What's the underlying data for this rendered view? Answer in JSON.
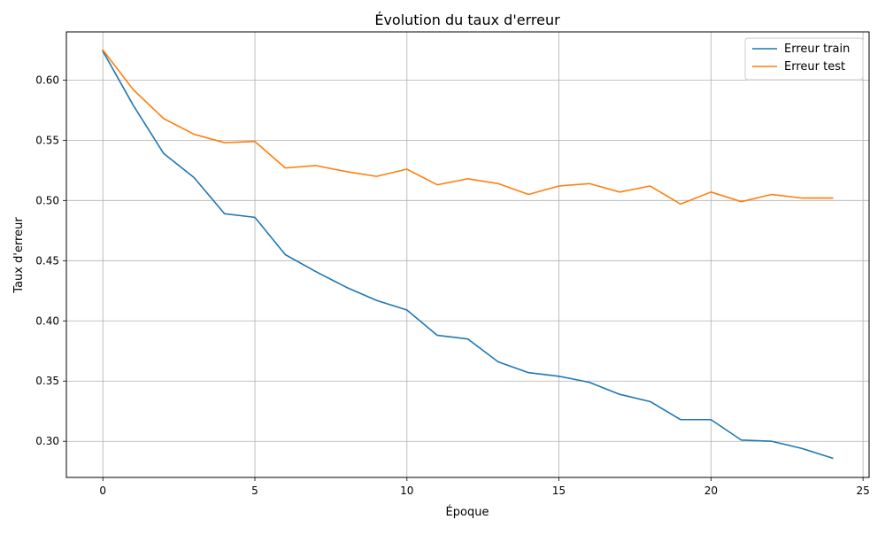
{
  "chart_data": {
    "type": "line",
    "title": "Évolution du taux d'erreur",
    "xlabel": "Époque",
    "ylabel": "Taux d'erreur",
    "x": [
      0,
      1,
      2,
      3,
      4,
      5,
      6,
      7,
      8,
      9,
      10,
      11,
      12,
      13,
      14,
      15,
      16,
      17,
      18,
      19,
      20,
      21,
      22,
      23,
      24
    ],
    "xlim": [
      -1.2,
      25.2
    ],
    "ylim": [
      0.27,
      0.64
    ],
    "xticks": [
      0,
      5,
      10,
      15,
      20,
      25
    ],
    "xtick_labels": [
      "0",
      "5",
      "10",
      "15",
      "20",
      "25"
    ],
    "yticks": [
      0.3,
      0.35,
      0.4,
      0.45,
      0.5,
      0.55,
      0.6
    ],
    "ytick_labels": [
      "0.30",
      "0.35",
      "0.40",
      "0.45",
      "0.50",
      "0.55",
      "0.60"
    ],
    "grid": true,
    "legend_position": "top-right",
    "series": [
      {
        "name": "Erreur train",
        "color": "#1f77b4",
        "values": [
          0.624,
          0.579,
          0.539,
          0.519,
          0.489,
          0.486,
          0.455,
          0.441,
          0.428,
          0.417,
          0.409,
          0.388,
          0.385,
          0.366,
          0.357,
          0.354,
          0.349,
          0.339,
          0.333,
          0.318,
          0.318,
          0.301,
          0.3,
          0.294,
          0.286
        ]
      },
      {
        "name": "Erreur test",
        "color": "#ff7f0e",
        "values": [
          0.625,
          0.592,
          0.568,
          0.555,
          0.548,
          0.549,
          0.527,
          0.529,
          0.524,
          0.52,
          0.526,
          0.513,
          0.518,
          0.514,
          0.505,
          0.512,
          0.514,
          0.507,
          0.512,
          0.497,
          0.507,
          0.499,
          0.505,
          0.502,
          0.502
        ]
      }
    ]
  }
}
